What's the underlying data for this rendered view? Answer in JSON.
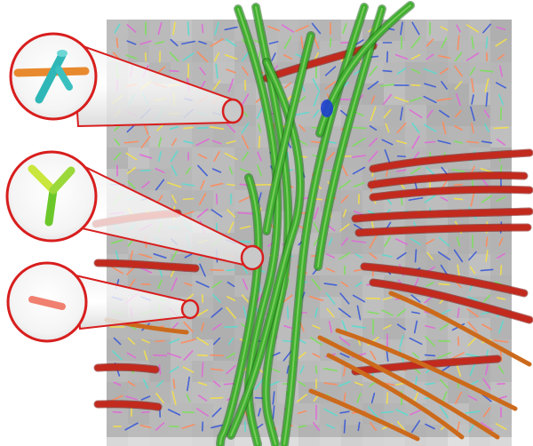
{
  "figure": {
    "background": "#ffffff",
    "slice_color": "#b9b9b9",
    "callout_stroke": "#d81e1e",
    "callouts": [
      {
        "name": "callout-crossing-fibers",
        "glyph": "three-way-crossing-tensor-glyph",
        "colors": [
          "#e8892e",
          "#2fb7b7"
        ]
      },
      {
        "name": "callout-branching-fibers",
        "glyph": "y-shaped-branching-tensor-glyph",
        "colors": [
          "#7ed321",
          "#d7ef4a"
        ]
      },
      {
        "name": "callout-single-fiber",
        "glyph": "single-direction-tensor-glyph",
        "colors": [
          "#f08070"
        ]
      }
    ],
    "tract_colors": {
      "vertical": "#3fae2f",
      "horizontal": "#c22a1e",
      "oblique": "#cc6a1c",
      "highlight": "#1e3fd0"
    }
  }
}
